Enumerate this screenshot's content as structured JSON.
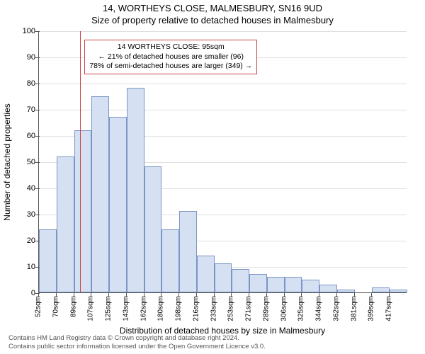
{
  "title": "14, WORTHEYS CLOSE, MALMESBURY, SN16 9UD",
  "subtitle": "Size of property relative to detached houses in Malmesbury",
  "ylabel": "Number of detached properties",
  "xlabel": "Distribution of detached houses by size in Malmesbury",
  "chart": {
    "type": "histogram",
    "ylim": [
      0,
      100
    ],
    "ytick_step": 10,
    "background_color": "#ffffff",
    "grid_color": "#e0e0e0",
    "bar_fill": "#d5e1f2",
    "bar_border": "#7b95c4",
    "marker_line_color": "#cc4444",
    "marker_x_value": 95,
    "x_start": 52,
    "x_step": 18.27,
    "bar_width_ratio": 1.0,
    "categories": [
      "52sqm",
      "70sqm",
      "89sqm",
      "107sqm",
      "125sqm",
      "143sqm",
      "162sqm",
      "180sqm",
      "198sqm",
      "216sqm",
      "233sqm",
      "253sqm",
      "271sqm",
      "289sqm",
      "306sqm",
      "325sqm",
      "344sqm",
      "362sqm",
      "381sqm",
      "399sqm",
      "417sqm"
    ],
    "values": [
      24,
      52,
      62,
      75,
      67,
      78,
      48,
      24,
      31,
      14,
      11,
      9,
      7,
      6,
      6,
      5,
      3,
      1,
      0,
      2,
      1
    ]
  },
  "callout": {
    "line1": "14 WORTHEYS CLOSE: 95sqm",
    "line2": "← 21% of detached houses are smaller (96)",
    "line3": "78% of semi-detached houses are larger (349) →",
    "border_color": "#cc4444",
    "fontsize": 10.5
  },
  "footer": {
    "line1": "Contains HM Land Registry data © Crown copyright and database right 2024.",
    "line2": "Contains public sector information licensed under the Open Government Licence v3.0."
  }
}
